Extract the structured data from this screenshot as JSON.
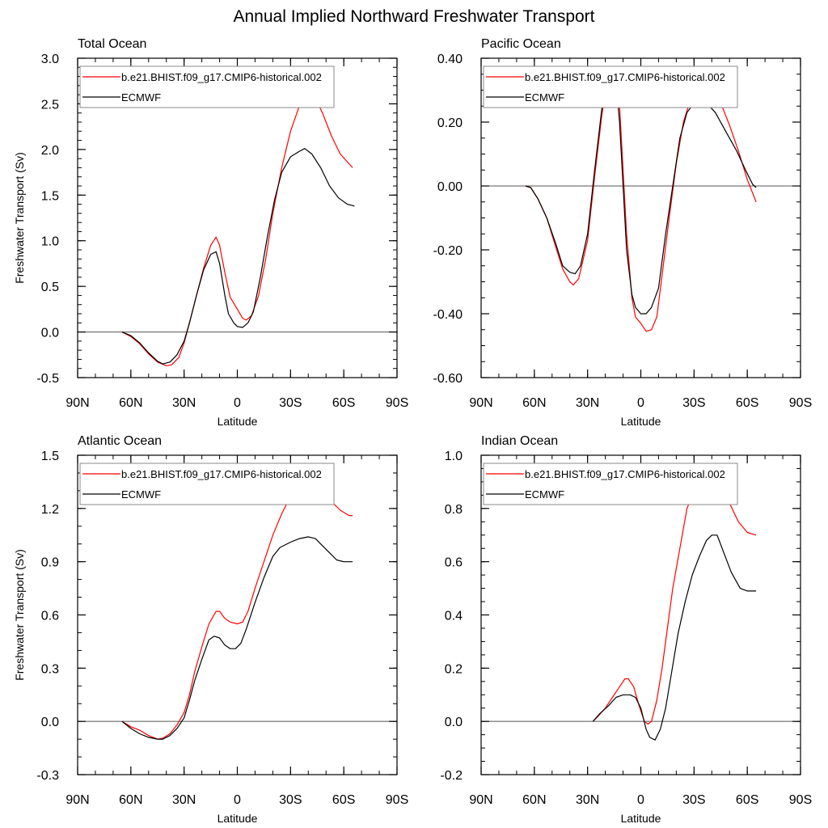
{
  "title": "Annual Implied Northward Freshwater Transport",
  "chart_data": [
    {
      "type": "line",
      "title": "Total Ocean",
      "xlabel": "Latitude",
      "ylabel": "Freshwater Transport (Sv)",
      "xlim": [
        90,
        -90
      ],
      "xticks": [
        90,
        60,
        30,
        0,
        -30,
        -60,
        -90
      ],
      "xtick_labels": [
        "90N",
        "60N",
        "30N",
        "0",
        "30S",
        "60S",
        "90S"
      ],
      "ylim": [
        -0.5,
        3.0
      ],
      "yticks": [
        3.0,
        2.5,
        2.0,
        1.5,
        1.0,
        0.5,
        0.0,
        -0.5
      ],
      "ytick_labels": [
        "3.0",
        "2.5",
        "2.0",
        "1.5",
        "1.0",
        "0.5",
        "0.0",
        "-0.5"
      ],
      "yminor": 0.1,
      "legend": "top-left",
      "series": [
        {
          "name": "b.e21.BHIST.f09_g17.CMIP6-historical.002",
          "color": "#ff0000",
          "x": [
            65,
            60,
            55,
            50,
            45,
            40,
            37,
            33,
            30,
            27,
            23,
            19,
            15,
            12,
            10,
            7,
            4,
            0,
            -3,
            -5,
            -8,
            -12,
            -16,
            -20,
            -25,
            -30,
            -35,
            -40,
            -43,
            -48,
            -53,
            -58,
            -65
          ],
          "y": [
            0,
            -0.05,
            -0.13,
            -0.24,
            -0.33,
            -0.37,
            -0.36,
            -0.28,
            -0.12,
            0.1,
            0.4,
            0.7,
            0.95,
            1.04,
            0.95,
            0.65,
            0.38,
            0.25,
            0.15,
            0.13,
            0.18,
            0.4,
            0.8,
            1.3,
            1.8,
            2.2,
            2.48,
            2.62,
            2.6,
            2.4,
            2.15,
            1.95,
            1.8
          ]
        },
        {
          "name": "ECMWF",
          "color": "#000000",
          "x": [
            65,
            60,
            55,
            50,
            45,
            42,
            38,
            34,
            30,
            27,
            23,
            19,
            15,
            12,
            10,
            7,
            5,
            2,
            0,
            -3,
            -6,
            -9,
            -13,
            -17,
            -21,
            -25,
            -30,
            -35,
            -38,
            -42,
            -47,
            -52,
            -57,
            -62,
            -66
          ],
          "y": [
            0,
            -0.04,
            -0.12,
            -0.23,
            -0.32,
            -0.35,
            -0.33,
            -0.25,
            -0.1,
            0.1,
            0.4,
            0.68,
            0.85,
            0.88,
            0.75,
            0.4,
            0.2,
            0.1,
            0.06,
            0.05,
            0.1,
            0.22,
            0.6,
            1.05,
            1.45,
            1.75,
            1.92,
            1.98,
            2.01,
            1.95,
            1.8,
            1.6,
            1.47,
            1.4,
            1.38
          ]
        }
      ]
    },
    {
      "type": "line",
      "title": "Pacific Ocean",
      "xlabel": "Latitude",
      "ylabel": "",
      "xlim": [
        90,
        -90
      ],
      "xticks": [
        90,
        60,
        30,
        0,
        -30,
        -60,
        -90
      ],
      "xtick_labels": [
        "90N",
        "60N",
        "30N",
        "0",
        "30S",
        "60S",
        "90S"
      ],
      "ylim": [
        -0.6,
        0.4
      ],
      "yticks": [
        0.4,
        0.2,
        0.0,
        -0.2,
        -0.4,
        -0.6
      ],
      "ytick_labels": [
        "0.40",
        "0.20",
        "0.00",
        "-0.20",
        "-0.40",
        "-0.60"
      ],
      "yminor": 0.05,
      "legend": "top-left",
      "series": [
        {
          "name": "b.e21.BHIST.f09_g17.CMIP6-historical.002",
          "color": "#ff0000",
          "x": [
            65,
            62,
            58,
            53,
            48,
            44,
            40,
            38,
            35,
            30,
            26,
            22,
            19,
            16,
            14,
            12,
            10,
            8,
            5,
            3,
            0,
            -3,
            -6,
            -9,
            -12,
            -16,
            -20,
            -24,
            -28,
            -33,
            -36,
            -40,
            -45,
            -50,
            -55,
            -60,
            -65
          ],
          "y": [
            0,
            -0.005,
            -0.04,
            -0.1,
            -0.19,
            -0.26,
            -0.3,
            -0.31,
            -0.29,
            -0.17,
            0.03,
            0.22,
            0.33,
            0.37,
            0.36,
            0.25,
            0.05,
            -0.15,
            -0.35,
            -0.41,
            -0.43,
            -0.455,
            -0.45,
            -0.41,
            -0.28,
            -0.1,
            0.07,
            0.2,
            0.27,
            0.31,
            0.32,
            0.31,
            0.26,
            0.19,
            0.11,
            0.02,
            -0.05
          ]
        },
        {
          "name": "ECMWF",
          "color": "#000000",
          "x": [
            65,
            62,
            58,
            53,
            48,
            44,
            40,
            37,
            34,
            30,
            26,
            22,
            18,
            16,
            14,
            12,
            10,
            8,
            5,
            3,
            0,
            -3,
            -6,
            -10,
            -14,
            -18,
            -22,
            -26,
            -30,
            -34,
            -37,
            -42,
            -48,
            -54,
            -59,
            -63,
            -65
          ],
          "y": [
            0,
            -0.005,
            -0.04,
            -0.1,
            -0.18,
            -0.25,
            -0.27,
            -0.275,
            -0.25,
            -0.15,
            0.05,
            0.24,
            0.34,
            0.37,
            0.33,
            0.2,
            0.0,
            -0.2,
            -0.34,
            -0.38,
            -0.4,
            -0.4,
            -0.38,
            -0.32,
            -0.15,
            0.0,
            0.15,
            0.23,
            0.26,
            0.27,
            0.26,
            0.23,
            0.17,
            0.11,
            0.05,
            0.005,
            -0.005
          ]
        }
      ]
    },
    {
      "type": "line",
      "title": "Atlantic Ocean",
      "xlabel": "Latitude",
      "ylabel": "Freshwater Transport (Sv)",
      "xlim": [
        90,
        -90
      ],
      "xticks": [
        90,
        60,
        30,
        0,
        -30,
        -60,
        -90
      ],
      "xtick_labels": [
        "90N",
        "60N",
        "30N",
        "0",
        "30S",
        "60S",
        "90S"
      ],
      "ylim": [
        -0.3,
        1.5
      ],
      "yticks": [
        1.5,
        1.2,
        0.9,
        0.6,
        0.3,
        0.0,
        -0.3
      ],
      "ytick_labels": [
        "1.5",
        "1.2",
        "0.9",
        "0.6",
        "0.3",
        "0.0",
        "-0.3"
      ],
      "yminor": 0.1,
      "legend": "top-left",
      "series": [
        {
          "name": "b.e21.BHIST.f09_g17.CMIP6-historical.002",
          "color": "#ff0000",
          "x": [
            65,
            60,
            55,
            50,
            45,
            42,
            38,
            34,
            30,
            27,
            24,
            20,
            16,
            12,
            10,
            7,
            4,
            0,
            -3,
            -6,
            -10,
            -15,
            -20,
            -25,
            -30,
            -35,
            -40,
            -44,
            -48,
            -53,
            -58,
            -63,
            -65
          ],
          "y": [
            0,
            -0.03,
            -0.05,
            -0.08,
            -0.1,
            -0.095,
            -0.07,
            -0.02,
            0.05,
            0.15,
            0.28,
            0.42,
            0.55,
            0.62,
            0.62,
            0.58,
            0.56,
            0.55,
            0.56,
            0.62,
            0.75,
            0.9,
            1.05,
            1.17,
            1.27,
            1.31,
            1.34,
            1.34,
            1.3,
            1.24,
            1.19,
            1.16,
            1.16
          ]
        },
        {
          "name": "ECMWF",
          "color": "#000000",
          "x": [
            65,
            60,
            55,
            50,
            45,
            42,
            38,
            34,
            30,
            27,
            24,
            20,
            16,
            13,
            10,
            7,
            4,
            1,
            -2,
            -5,
            -10,
            -15,
            -20,
            -24,
            -30,
            -35,
            -40,
            -44,
            -48,
            -52,
            -56,
            -60,
            -65
          ],
          "y": [
            0,
            -0.04,
            -0.07,
            -0.09,
            -0.1,
            -0.1,
            -0.08,
            -0.04,
            0.02,
            0.12,
            0.23,
            0.35,
            0.46,
            0.48,
            0.47,
            0.43,
            0.41,
            0.41,
            0.44,
            0.52,
            0.67,
            0.81,
            0.93,
            0.98,
            1.01,
            1.03,
            1.04,
            1.03,
            0.99,
            0.95,
            0.91,
            0.9,
            0.9
          ]
        }
      ]
    },
    {
      "type": "line",
      "title": "Indian Ocean",
      "xlabel": "Latitude",
      "ylabel": "",
      "xlim": [
        90,
        -90
      ],
      "xticks": [
        90,
        60,
        30,
        0,
        -30,
        -60,
        -90
      ],
      "xtick_labels": [
        "90N",
        "60N",
        "30N",
        "0",
        "30S",
        "60S",
        "90S"
      ],
      "ylim": [
        -0.2,
        1.0
      ],
      "yticks": [
        1.0,
        0.8,
        0.6,
        0.4,
        0.2,
        0.0,
        -0.2
      ],
      "ytick_labels": [
        "1.0",
        "0.8",
        "0.6",
        "0.4",
        "0.2",
        "0.0",
        "-0.2"
      ],
      "yminor": 0.05,
      "legend": "top-left",
      "series": [
        {
          "name": "b.e21.BHIST.f09_g17.CMIP6-historical.002",
          "color": "#ff0000",
          "x": [
            27,
            24,
            20,
            16,
            12,
            9,
            7,
            4,
            1,
            -2,
            -4,
            -6,
            -9,
            -12,
            -15,
            -18,
            -22,
            -26,
            -31,
            -35,
            -38,
            -41,
            -45,
            -50,
            -55,
            -60,
            -65
          ],
          "y": [
            0,
            0.02,
            0.05,
            0.09,
            0.13,
            0.16,
            0.16,
            0.13,
            0.06,
            0.0,
            -0.01,
            0.0,
            0.08,
            0.2,
            0.35,
            0.5,
            0.65,
            0.8,
            0.88,
            0.93,
            0.96,
            0.96,
            0.9,
            0.82,
            0.75,
            0.71,
            0.7
          ]
        },
        {
          "name": "ECMWF",
          "color": "#000000",
          "x": [
            27,
            23,
            18,
            14,
            10,
            6,
            3,
            0,
            -3,
            -5,
            -8,
            -11,
            -14,
            -17,
            -21,
            -25,
            -29,
            -33,
            -37,
            -40,
            -43,
            -47,
            -51,
            -56,
            -60,
            -65
          ],
          "y": [
            0,
            0.03,
            0.06,
            0.09,
            0.1,
            0.1,
            0.09,
            0.05,
            -0.03,
            -0.06,
            -0.07,
            -0.03,
            0.05,
            0.17,
            0.33,
            0.45,
            0.55,
            0.62,
            0.68,
            0.7,
            0.7,
            0.63,
            0.56,
            0.5,
            0.49,
            0.49
          ]
        }
      ]
    }
  ]
}
